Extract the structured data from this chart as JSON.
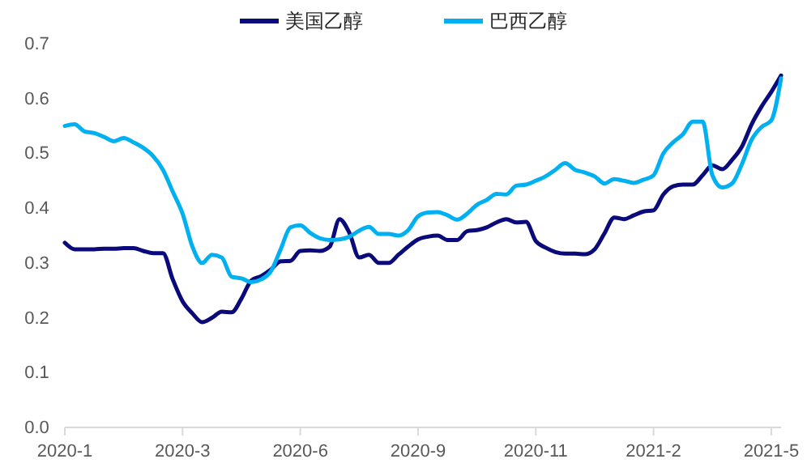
{
  "chart_data": {
    "type": "line",
    "legend": "top",
    "grid": false,
    "line_style": "solid",
    "marker": "none",
    "categories": [
      "2020-1",
      null,
      null,
      null,
      null,
      null,
      null,
      null,
      null,
      null,
      null,
      null,
      "2020-3",
      null,
      null,
      null,
      null,
      null,
      null,
      null,
      null,
      null,
      null,
      null,
      "2020-6",
      null,
      null,
      null,
      null,
      null,
      null,
      null,
      null,
      null,
      null,
      null,
      "2020-9",
      null,
      null,
      null,
      null,
      null,
      null,
      null,
      null,
      null,
      null,
      null,
      "2020-11",
      null,
      null,
      null,
      null,
      null,
      null,
      null,
      null,
      null,
      null,
      null,
      "2021-2",
      null,
      null,
      null,
      null,
      null,
      null,
      null,
      null,
      null,
      null,
      null,
      "2021-5",
      null
    ],
    "ylim": [
      0,
      0.7
    ],
    "yticks": [
      {
        "value": 0,
        "label": "0.0"
      },
      0.1,
      0.2,
      0.3,
      0.4,
      0.5,
      0.6,
      0.7
    ],
    "series": [
      {
        "name": "美国乙醇",
        "color": "#0a0a7a",
        "values": [
          0.337,
          0.325,
          0.325,
          0.325,
          0.326,
          0.326,
          0.327,
          0.327,
          0.322,
          0.318,
          0.318,
          0.27,
          0.23,
          0.208,
          0.192,
          0.2,
          0.211,
          0.21,
          0.235,
          0.268,
          0.276,
          0.288,
          0.303,
          0.304,
          0.322,
          0.323,
          0.322,
          0.33,
          0.38,
          0.355,
          0.31,
          0.315,
          0.3,
          0.3,
          0.315,
          0.33,
          0.343,
          0.348,
          0.35,
          0.342,
          0.342,
          0.358,
          0.36,
          0.365,
          0.374,
          0.38,
          0.374,
          0.375,
          0.34,
          0.328,
          0.32,
          0.317,
          0.317,
          0.316,
          0.325,
          0.354,
          0.383,
          0.38,
          0.387,
          0.394,
          0.396,
          0.425,
          0.44,
          0.443,
          0.443,
          0.46,
          0.478,
          0.471,
          0.488,
          0.512,
          0.553,
          0.585,
          0.612,
          0.642
        ]
      },
      {
        "name": "巴西乙醇",
        "color": "#00b0f0",
        "values": [
          0.55,
          0.553,
          0.54,
          0.537,
          0.53,
          0.522,
          0.528,
          0.52,
          0.51,
          0.495,
          0.47,
          0.43,
          0.39,
          0.33,
          0.3,
          0.315,
          0.31,
          0.275,
          0.272,
          0.265,
          0.27,
          0.285,
          0.325,
          0.365,
          0.369,
          0.355,
          0.345,
          0.342,
          0.343,
          0.348,
          0.359,
          0.366,
          0.353,
          0.353,
          0.35,
          0.36,
          0.385,
          0.392,
          0.393,
          0.387,
          0.379,
          0.39,
          0.406,
          0.415,
          0.426,
          0.425,
          0.441,
          0.443,
          0.45,
          0.458,
          0.47,
          0.482,
          0.47,
          0.465,
          0.458,
          0.445,
          0.453,
          0.45,
          0.446,
          0.452,
          0.46,
          0.5,
          0.52,
          0.535,
          0.558,
          0.558,
          0.46,
          0.438,
          0.445,
          0.48,
          0.525,
          0.548,
          0.56,
          0.637
        ]
      }
    ]
  }
}
